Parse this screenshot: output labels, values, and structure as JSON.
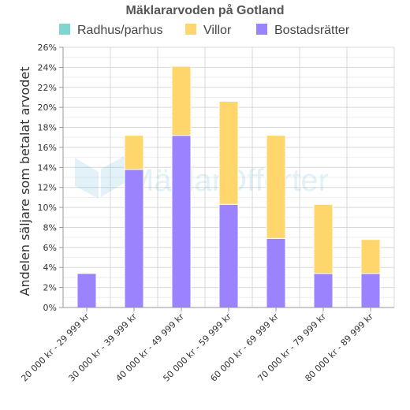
{
  "chart_data": {
    "type": "bar",
    "stacked": true,
    "title": "Mäklararvoden på Gotland",
    "ylabel": "Andelen säljare som betalat arvodet",
    "xlabel": "",
    "ylim": [
      0,
      26
    ],
    "ytick_step": 2,
    "ytick_suffix": "%",
    "grid": true,
    "legend_position": "top",
    "categories": [
      "20 000 kr - 29 999 kr",
      "30 000 kr - 39 999 kr",
      "40 000 kr - 49 999 kr",
      "50 000 kr - 59 999 kr",
      "60 000 kr - 69 999 kr",
      "70 000 kr - 79 999 kr",
      "80 000 kr - 89 999 kr"
    ],
    "series": [
      {
        "name": "Radhus/parhus",
        "color": "#7ed6cf",
        "values": [
          0,
          0,
          0,
          0,
          0,
          0,
          0
        ]
      },
      {
        "name": "Villor",
        "color": "#ffd66b",
        "values": [
          0,
          3.4,
          6.9,
          10.3,
          10.3,
          6.9,
          3.4
        ]
      },
      {
        "name": "Bostadsrätter",
        "color": "#9b82ff",
        "values": [
          3.4,
          13.8,
          17.2,
          10.3,
          6.9,
          3.4,
          3.4
        ]
      }
    ]
  },
  "watermark": {
    "text": "MäklarOfferter",
    "color": "#3aa9d0"
  }
}
